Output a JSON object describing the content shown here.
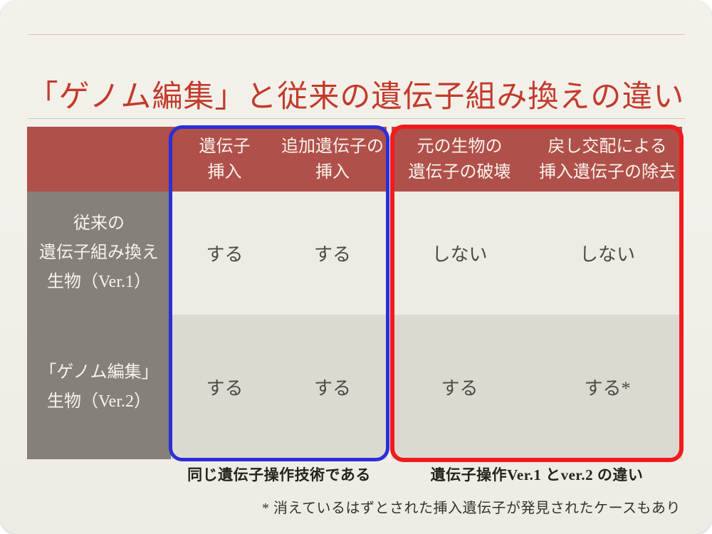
{
  "slide": {
    "title": "「ゲノム編集」と従来の遺伝子組み換えの違い",
    "table": {
      "columns": [
        {
          "id": "gene-insertion",
          "label": "遺伝子\n挿入"
        },
        {
          "id": "additional-gene-insertion",
          "label": "追加遺伝子の\n挿入"
        },
        {
          "id": "original-gene-destruction",
          "label": "元の生物の\n遺伝子の破壊"
        },
        {
          "id": "backcross-gene-removal",
          "label": "戻し交配による\n挿入遺伝子の除去"
        }
      ],
      "rows": [
        {
          "label": "従来の\n遺伝子組み換え\n生物（Ver.1）",
          "values": [
            "する",
            "する",
            "しない",
            "しない"
          ]
        },
        {
          "label": "「ゲノム編集」\n生物（Ver.2）",
          "values": [
            "する",
            "する",
            "する",
            "する*"
          ]
        }
      ]
    },
    "annotations": {
      "blue_box_caption": "同じ遺伝子操作技術である",
      "red_box_caption": "遺伝子操作Ver.1 とver.2 の違い",
      "footnote": "* 消えているはずとされた挿入遺伝子が発見されたケースもあり"
    },
    "colors": {
      "page_background": "#f2efe9",
      "title_red": "#c23b2c",
      "header_background": "#b0504a",
      "header_text": "#f9f2ec",
      "row_label_background": "#858079",
      "row1_background": "#edebe3",
      "row2_background": "#dcd9d1",
      "body_text": "#4b4a45",
      "blue_box_border": "#2a2fd8",
      "red_box_border": "#ef1b1f",
      "caption_text": "#25231f"
    }
  }
}
